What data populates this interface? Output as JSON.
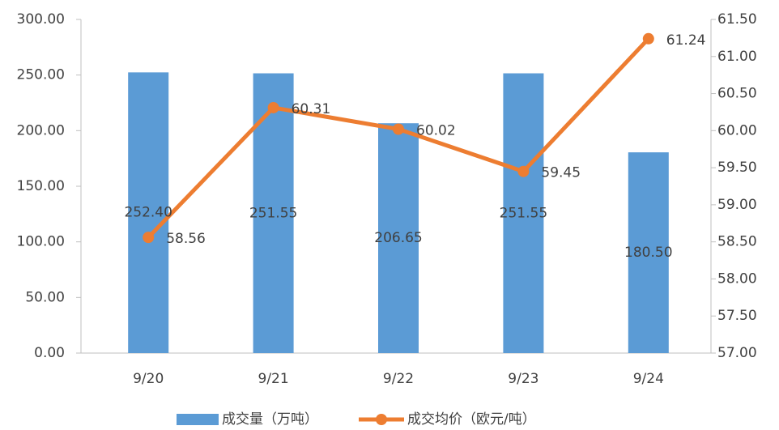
{
  "chart_data": {
    "type": "bar_line",
    "categories": [
      "9/20",
      "9/21",
      "9/22",
      "9/23",
      "9/24"
    ],
    "series": [
      {
        "name": "成交量（万吨）",
        "color": "#5b9bd5",
        "type": "bar",
        "axis": "y",
        "values": [
          252.4,
          251.55,
          206.65,
          251.55,
          180.5
        ],
        "value_labels": [
          "252.40",
          "251.55",
          "206.65",
          "251.55",
          "180.50"
        ]
      },
      {
        "name": "成交均价（欧元/吨）",
        "color": "#ed7d31",
        "type": "line",
        "axis": "y2",
        "values": [
          58.56,
          60.31,
          60.02,
          59.45,
          61.24
        ]
      }
    ],
    "ylim": [
      0,
      300
    ],
    "yticks": [
      {
        "value": 0,
        "label": "0.00"
      },
      {
        "value": 50,
        "label": "50.00"
      },
      {
        "value": 100,
        "label": "100.00"
      },
      {
        "value": 150,
        "label": "150.00"
      },
      {
        "value": 200,
        "label": "200.00"
      },
      {
        "value": 250,
        "label": "250.00"
      },
      {
        "value": 300,
        "label": "300.00"
      }
    ],
    "y2lim": [
      57,
      61.5
    ],
    "y2ticks": [
      {
        "value": 57,
        "label": "57.00"
      },
      {
        "value": 57.5,
        "label": "57.50"
      },
      {
        "value": 58,
        "label": "58.00"
      },
      {
        "value": 58.5,
        "label": "58.50"
      },
      {
        "value": 59,
        "label": "59.00"
      },
      {
        "value": 59.5,
        "label": "59.50"
      },
      {
        "value": 60,
        "label": "60.00"
      },
      {
        "value": 60.5,
        "label": "60.50"
      },
      {
        "value": 61,
        "label": "61.00"
      },
      {
        "value": 61.5,
        "label": "61.50"
      }
    ],
    "legend": "bottom"
  }
}
